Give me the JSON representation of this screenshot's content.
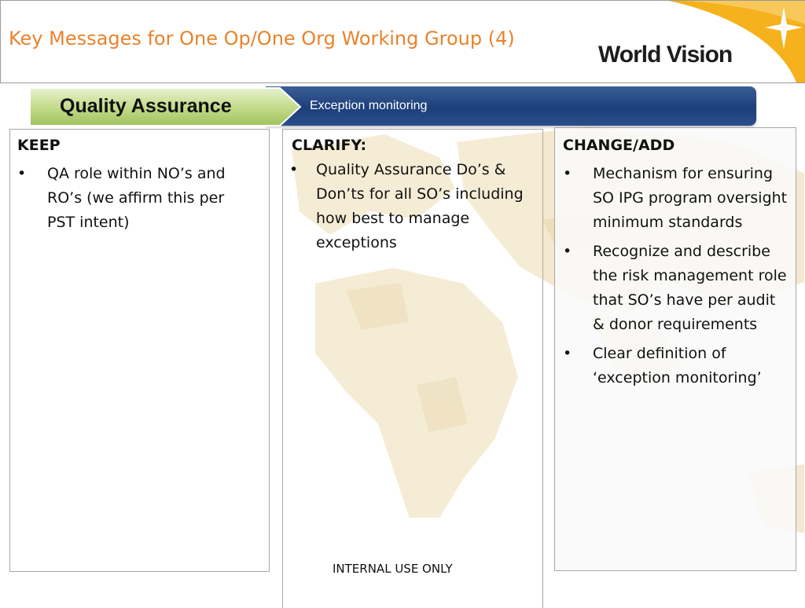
{
  "header": {
    "title": "Key Messages for One Op/One Org Working Group (4)",
    "logo_text": "World Vision",
    "colors": {
      "title": "#e8832c",
      "swoosh": "#f5b21c",
      "banner_dark": "#1c3f7a",
      "banner_green": "#b9d57e"
    }
  },
  "banner": {
    "label": "Quality Assurance",
    "subtitle": "Exception monitoring"
  },
  "columns": {
    "keep": {
      "heading": "KEEP",
      "bullets": [
        "QA role within NO’s and RO’s (we affirm this per PST intent)"
      ]
    },
    "clarify": {
      "heading": "CLARIFY:",
      "bullets": [
        "Quality Assurance Do’s & Don’ts for all SO’s including how best to manage exceptions"
      ]
    },
    "change": {
      "heading": "CHANGE/ADD",
      "bullets": [
        "Mechanism for ensuring SO IPG program oversight minimum standards",
        "Recognize and describe the risk management role that SO’s have per audit & donor requirements",
        "Clear definition of ‘exception monitoring’"
      ]
    }
  },
  "footer": {
    "text": "INTERNAL USE ONLY"
  }
}
